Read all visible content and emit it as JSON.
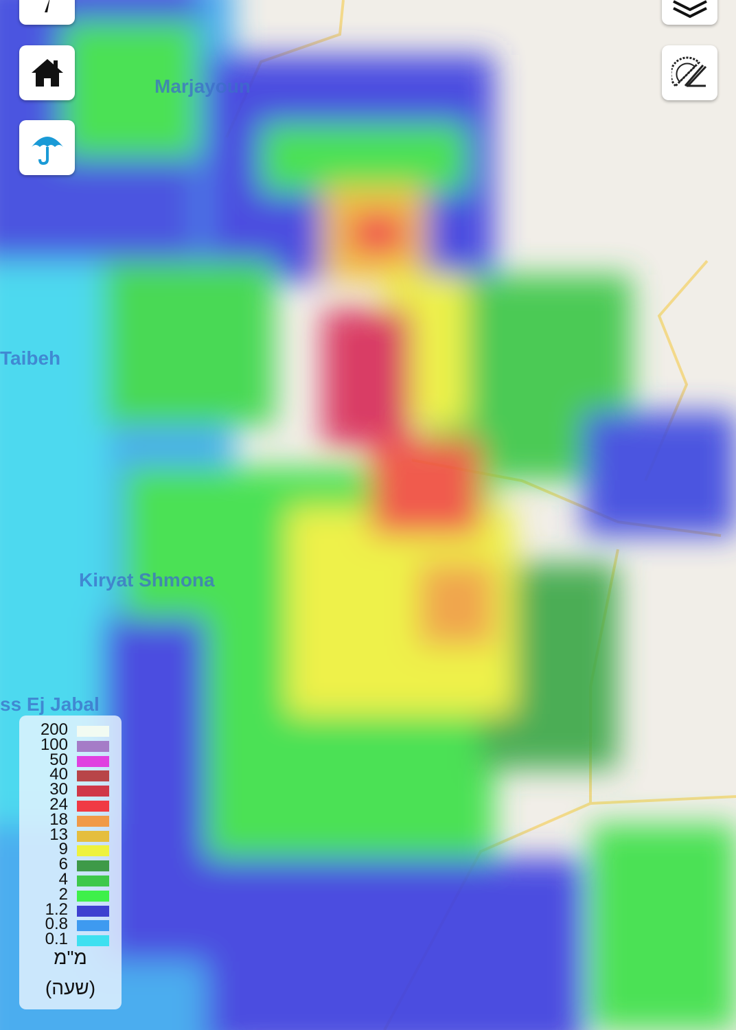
{
  "map": {
    "places": [
      "Marjayoun",
      "Taibeh",
      "Kiryat Shmona",
      "ss Ej Jabal"
    ]
  },
  "controls": {
    "top_left": [
      {
        "icon": "compass-icon"
      },
      {
        "icon": "home-icon"
      },
      {
        "icon": "umbrella-icon"
      }
    ],
    "top_right": [
      {
        "icon": "layers-icon"
      },
      {
        "icon": "protractor-ruler-icon"
      }
    ],
    "accent_color": "#1a9ad6"
  },
  "legend": {
    "items": [
      {
        "value": "200",
        "color": "#f2fbf2"
      },
      {
        "value": "100",
        "color": "#a57cc7"
      },
      {
        "value": "50",
        "color": "#e040e0"
      },
      {
        "value": "40",
        "color": "#b84548"
      },
      {
        "value": "30",
        "color": "#d03848"
      },
      {
        "value": "24",
        "color": "#f03a44"
      },
      {
        "value": "18",
        "color": "#f09a48"
      },
      {
        "value": "13",
        "color": "#e5be3e"
      },
      {
        "value": "9",
        "color": "#eef23e"
      },
      {
        "value": "6",
        "color": "#3e9a48"
      },
      {
        "value": "4",
        "color": "#3ec84a"
      },
      {
        "value": "2",
        "color": "#3ef04a"
      },
      {
        "value": "1.2",
        "color": "#3e40d0"
      },
      {
        "value": "0.8",
        "color": "#3e9af0"
      },
      {
        "value": "0.1",
        "color": "#3ee0f0"
      }
    ],
    "unit": "מ\"מ",
    "period": "(שעה)"
  }
}
